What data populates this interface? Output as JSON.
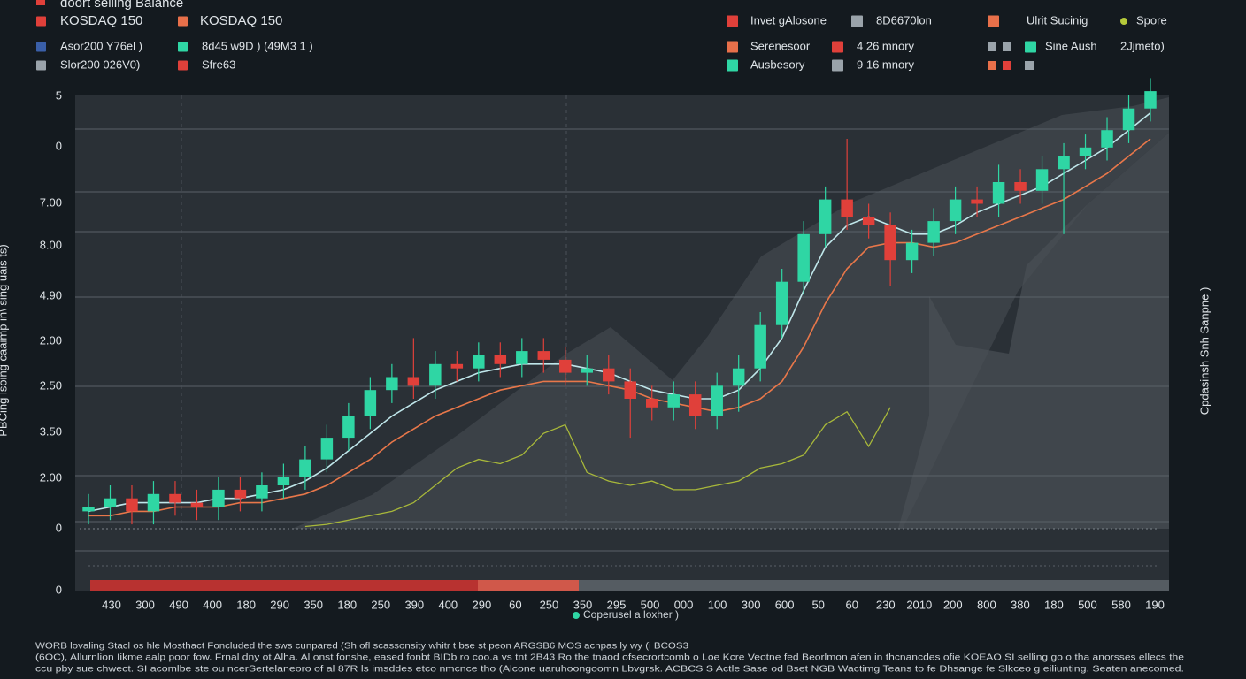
{
  "chart_data": {
    "type": "candlestick",
    "title": "doort selling Balance",
    "legend": [
      {
        "label": "KOSDAQ 150",
        "color": "#e0403a"
      },
      {
        "label": "KOSDAQ 150",
        "color": "#e8704a"
      },
      {
        "label": "Asor200 Y76el )",
        "color": "#3a5fa8"
      },
      {
        "label": "8d45 w9D ) (49M3 1 )",
        "color": "#2fd6a4"
      },
      {
        "label": "Slor200 026V0)",
        "color": "#9aa3aa"
      },
      {
        "label": "Sfre63",
        "color": "#e0403a"
      },
      {
        "label": "Invet gAlosone",
        "color": "#e0403a"
      },
      {
        "label": "8D6670lon",
        "color": "#9aa3aa"
      },
      {
        "label": "Serenesoor",
        "color": "#e8704a"
      },
      {
        "label": "4 26 mnory",
        "color": "#e0403a"
      },
      {
        "label": "Ausbesory",
        "color": "#2fd6a4"
      },
      {
        "label": "9 16 mnory",
        "color": "#9aa3aa"
      },
      {
        "label": "Ulrit Sucinig",
        "color": "#e8704a"
      },
      {
        "label": "Spore",
        "color": "#b5c93a"
      },
      {
        "label": "Sine Aush",
        "color": "#2fd6a4"
      },
      {
        "label": "2Jjmeto)",
        "color": "#9aa3aa"
      }
    ],
    "y_label": "PBCing lsoing caaimp in\\ sing uais ts)",
    "y2_label": "Cpdasinsh Snh Sanpne )",
    "y_labels": [
      "5",
      "0",
      "7.00",
      "8.00",
      "4.90",
      "2.00",
      "2.50",
      "3.50",
      "2.00",
      "0",
      "0"
    ],
    "x_labels": [
      "430",
      "300",
      "490",
      "400",
      "180",
      "290",
      "350",
      "180",
      "250",
      "390",
      "400",
      "290",
      "60",
      "250",
      "350",
      "295",
      "500",
      "000",
      "100",
      "300",
      "600",
      "50",
      "60",
      "230",
      "2010",
      "200",
      "800",
      "380",
      "180",
      "500",
      "580",
      "190"
    ],
    "x_note": "Coperusel a loxher )",
    "ylim": [
      0,
      100
    ],
    "up_color": "#2fd6a4",
    "down_color": "#e0403a",
    "open": [
      4,
      5,
      7,
      4,
      8,
      6,
      5,
      9,
      7,
      10,
      12,
      16,
      21,
      26,
      32,
      35,
      33,
      38,
      37,
      40,
      38,
      41,
      39,
      36,
      37,
      34,
      30,
      28,
      31,
      26,
      33,
      37,
      47,
      57,
      68,
      76,
      72,
      70,
      62,
      66,
      71,
      76,
      75,
      80,
      78,
      83,
      86,
      88,
      92,
      97
    ],
    "high": [
      8,
      10,
      10,
      11,
      11,
      9,
      12,
      12,
      13,
      15,
      19,
      24,
      29,
      35,
      38,
      44,
      41,
      41,
      43,
      43,
      44,
      44,
      42,
      40,
      40,
      37,
      33,
      34,
      34,
      36,
      40,
      50,
      60,
      71,
      79,
      90,
      75,
      73,
      69,
      74,
      79,
      79,
      84,
      83,
      86,
      89,
      91,
      95,
      100,
      104
    ],
    "low": [
      1,
      2,
      1,
      1,
      3,
      2,
      2,
      4,
      4,
      7,
      9,
      13,
      18,
      23,
      29,
      30,
      30,
      34,
      34,
      35,
      35,
      36,
      33,
      33,
      31,
      21,
      25,
      25,
      23,
      23,
      27,
      34,
      44,
      54,
      65,
      69,
      67,
      56,
      59,
      63,
      68,
      72,
      72,
      75,
      75,
      68,
      83,
      85,
      89,
      94
    ],
    "close": [
      5,
      7,
      4,
      8,
      6,
      5,
      9,
      7,
      10,
      12,
      16,
      21,
      26,
      32,
      35,
      33,
      38,
      37,
      40,
      38,
      41,
      39,
      36,
      37,
      34,
      30,
      28,
      31,
      26,
      33,
      37,
      47,
      57,
      68,
      76,
      72,
      70,
      62,
      66,
      71,
      76,
      75,
      80,
      78,
      83,
      86,
      88,
      92,
      97,
      101
    ],
    "lines": [
      {
        "color": "#bfe6ea",
        "values": [
          4,
          5,
          6,
          6,
          6,
          6,
          7,
          7,
          8,
          9,
          11,
          14,
          18,
          22,
          26,
          29,
          32,
          34,
          36,
          37,
          38,
          38,
          38,
          37,
          36,
          34,
          32,
          31,
          30,
          30,
          32,
          37,
          44,
          55,
          65,
          70,
          72,
          70,
          68,
          68,
          70,
          73,
          75,
          77,
          79,
          82,
          85,
          88,
          92,
          96
        ]
      },
      {
        "color": "#e8774a",
        "values": [
          3,
          3,
          4,
          4,
          5,
          5,
          5,
          6,
          6,
          7,
          8,
          10,
          13,
          16,
          20,
          23,
          26,
          28,
          30,
          32,
          33,
          34,
          34,
          34,
          33,
          32,
          30,
          29,
          28,
          27,
          28,
          30,
          34,
          42,
          52,
          60,
          65,
          66,
          66,
          65,
          66,
          68,
          70,
          72,
          74,
          76,
          79,
          82,
          86,
          90
        ]
      },
      {
        "color": "#a8b83a",
        "values": [
          null,
          null,
          null,
          null,
          null,
          null,
          null,
          null,
          null,
          null,
          0.5,
          1,
          2,
          3,
          4,
          6,
          10,
          14,
          16,
          15,
          17,
          22,
          24,
          13,
          11,
          10,
          11,
          9,
          9,
          10,
          11,
          14,
          15,
          17,
          24,
          27,
          19,
          28,
          null,
          null,
          null,
          null,
          null,
          null,
          null,
          null,
          null,
          null,
          null,
          null
        ]
      }
    ],
    "footnote": [
      "WORB lovaling Stacl os hle Mosthact Foncluded the sws cunpared (Sh ofl scassonsity whitr t bse st peon ARGSB6 MOS acnpas ly wy (i BCOS3",
      "(6OC), Allurnlion Iikme aalp poor fow. Frnal dny ot Alha. Al onst fonshe, eased fonbt BIDb ro coo.a vs tnt 2B43 Ro the tnaod ofsecrortcomb o Loe Kcre Veotne fed Beorlmon afen in thcnancdes ofie KOEAO SI selling go o tha anorsses ellecs the",
      "ccu pby sue chwect. SI acomlbe ste ou ncerSertelaneoro of al 87R ls imsddes etco nmcnce tho (Alcone uaruhoongoomn Lbvgrsk. ACBCS S Actle Sase od Bset NGB Wactimg Teans to fe Dhsange fe Slkceo g eiliunting. Seaten anecomed."
    ]
  }
}
